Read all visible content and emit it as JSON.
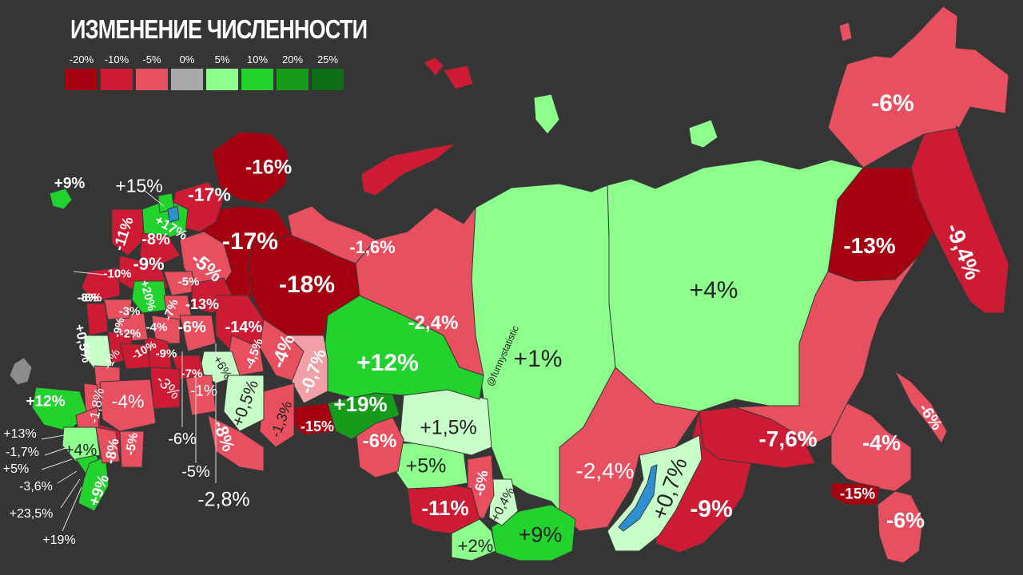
{
  "title": "ИЗМЕНЕНИЕ ЧИСЛЕННОСТИ",
  "legend": [
    {
      "label": "-20%",
      "color": "#a50010"
    },
    {
      "label": "-10%",
      "color": "#cc1b33"
    },
    {
      "label": "-5%",
      "color": "#e8505f"
    },
    {
      "label": "0%",
      "color": "#a9a9a9"
    },
    {
      "label": "5%",
      "color": "#8cff8c"
    },
    {
      "label": "10%",
      "color": "#22d32e"
    },
    {
      "label": "20%",
      "color": "#159c1a"
    },
    {
      "label": "25%",
      "color": "#0b6d16"
    }
  ],
  "watermark": "@funnystatistic",
  "regions": [
    {
      "id": "chukotka",
      "value": "-6%"
    },
    {
      "id": "kamchatka",
      "value": "-9,4%"
    },
    {
      "id": "magadan",
      "value": "-13%"
    },
    {
      "id": "yakutia",
      "value": "+4%"
    },
    {
      "id": "krasnoyarsk",
      "value": "+1%"
    },
    {
      "id": "khabarovsk",
      "value": "-7,6%"
    },
    {
      "id": "amur",
      "value": "-4%"
    },
    {
      "id": "sakhalin",
      "value": "-6%"
    },
    {
      "id": "jewish",
      "value": "-15%"
    },
    {
      "id": "primorye",
      "value": "-6%"
    },
    {
      "id": "zabaykalsky",
      "value": "-9%"
    },
    {
      "id": "buryatia",
      "value": "+0,7%"
    },
    {
      "id": "irkutsk",
      "value": "-2,4%"
    },
    {
      "id": "tyva",
      "value": "+9%"
    },
    {
      "id": "altai_rep",
      "value": "+2%"
    },
    {
      "id": "khakassia",
      "value": "+0,4%"
    },
    {
      "id": "kemerovo",
      "value": "-6%"
    },
    {
      "id": "altai_krai",
      "value": "-11%"
    },
    {
      "id": "novosibirsk",
      "value": "+5%"
    },
    {
      "id": "tomsk",
      "value": "+1,5%"
    },
    {
      "id": "omsk",
      "value": "-6%"
    },
    {
      "id": "tyumen",
      "value": "+19%"
    },
    {
      "id": "khmao",
      "value": "+12%"
    },
    {
      "id": "yanao",
      "value": "-2,4%"
    },
    {
      "id": "nenets",
      "value": "-1,6%"
    },
    {
      "id": "komi",
      "value": "-18%"
    },
    {
      "id": "arkhangelsk",
      "value": "-17%"
    },
    {
      "id": "murmansk",
      "value": "-16%"
    },
    {
      "id": "karelia",
      "value": "-17%"
    },
    {
      "id": "spb",
      "value": "+15%"
    },
    {
      "id": "lenobl",
      "value": "+17%"
    },
    {
      "id": "kaliningrad",
      "value": "+9%"
    },
    {
      "id": "pskov",
      "value": "-11%"
    },
    {
      "id": "novgorod",
      "value": "-8%"
    },
    {
      "id": "vologda",
      "value": "-5%"
    },
    {
      "id": "tver",
      "value": "-9%"
    },
    {
      "id": "smolensk",
      "value": "-10%"
    },
    {
      "id": "moscow_city",
      "value": "+13%"
    },
    {
      "id": "moscow_obl",
      "value": "+20%"
    },
    {
      "id": "yaroslavl",
      "value": "-5%"
    },
    {
      "id": "kostroma",
      "value": "-13%"
    },
    {
      "id": "ivanovo",
      "value": "-7%"
    },
    {
      "id": "kirov",
      "value": "-14%"
    },
    {
      "id": "perm",
      "value": "-4%"
    },
    {
      "id": "sverdlovsk",
      "value": "-0,7%"
    },
    {
      "id": "kurgan",
      "value": "-15%"
    },
    {
      "id": "udmurtia",
      "value": "-4,5%"
    },
    {
      "id": "tatarstan",
      "value": "+6%"
    },
    {
      "id": "bashkortostan",
      "value": "+0,5%"
    },
    {
      "id": "chelyabinsk",
      "value": "-1,3%"
    },
    {
      "id": "orenburg",
      "value": "-8%"
    },
    {
      "id": "samara",
      "value": "-1%"
    },
    {
      "id": "ulyanovsk",
      "value": "-7%"
    },
    {
      "id": "nizhny",
      "value": "-6%"
    },
    {
      "id": "vladimir",
      "value": "-4%"
    },
    {
      "id": "ryazan",
      "value": "-9%"
    },
    {
      "id": "tula",
      "value": "-2%"
    },
    {
      "id": "kaluga",
      "value": "-3%"
    },
    {
      "id": "bryansk",
      "value": "-8%"
    },
    {
      "id": "kursk",
      "value": "-9%"
    },
    {
      "id": "orel",
      "value": "-10%"
    },
    {
      "id": "belgorod",
      "value": "+0,5%"
    },
    {
      "id": "lipetsk",
      "value": "-1%"
    },
    {
      "id": "tambov",
      "value": "-1,8%"
    },
    {
      "id": "penza",
      "value": "-3%"
    },
    {
      "id": "saratov",
      "value": "-4%"
    },
    {
      "id": "volgograd",
      "value": "-8%"
    },
    {
      "id": "astrakhan",
      "value": "-5%"
    },
    {
      "id": "krasnodar",
      "value": "+12%"
    },
    {
      "id": "adygea_callout",
      "value": "+13%"
    },
    {
      "id": "kchr_callout",
      "value": "-1,7%"
    },
    {
      "id": "kbr_callout",
      "value": "+5%"
    },
    {
      "id": "no_callout",
      "value": "-3,6%"
    },
    {
      "id": "chechnya_callout",
      "value": "+23,5%"
    },
    {
      "id": "ingushetia_callout",
      "value": "+19%"
    },
    {
      "id": "stavropol",
      "value": "+4%"
    },
    {
      "id": "dagestan",
      "value": "+9%"
    },
    {
      "id": "mordovia_callout",
      "value": "-6%"
    },
    {
      "id": "chuvashia_callout",
      "value": "-5%"
    },
    {
      "id": "mari_callout",
      "value": "-2,8%"
    },
    {
      "id": "moscow_callout",
      "value": "+13%"
    },
    {
      "id": "karelia2",
      "value": "-8%"
    }
  ]
}
